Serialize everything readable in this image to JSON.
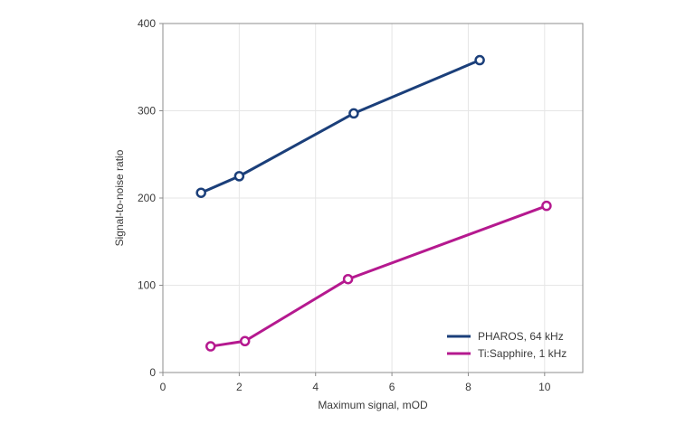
{
  "chart_data": {
    "type": "line",
    "title": "",
    "xlabel": "Maximum signal, mOD",
    "ylabel": "Signal-to-noise ratio",
    "xlim": [
      0,
      11
    ],
    "ylim": [
      0,
      400
    ],
    "xticks": [
      0,
      2,
      4,
      6,
      8,
      10
    ],
    "yticks": [
      0,
      100,
      200,
      300,
      400
    ],
    "grid": true,
    "legend": "bottom-right",
    "series": [
      {
        "name": "PHAROS, 64 kHz",
        "color": "#1b3f7a",
        "x": [
          1.0,
          2.0,
          5.0,
          8.3
        ],
        "y": [
          206,
          225,
          297,
          358
        ]
      },
      {
        "name": "Ti:Sapphire, 1 kHz",
        "color": "#b5198f",
        "x": [
          1.25,
          2.15,
          4.85,
          10.05
        ],
        "y": [
          30,
          36,
          107,
          191
        ]
      }
    ]
  }
}
